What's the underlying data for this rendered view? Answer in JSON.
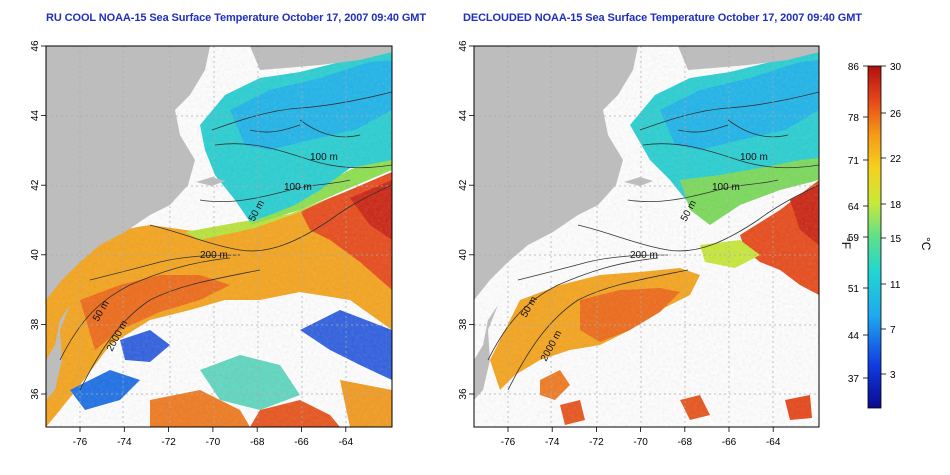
{
  "panels": [
    {
      "title": "RU COOL NOAA-15 Sea Surface Temperature October 17, 2007 09:40 GMT",
      "contours": [
        {
          "label": "100 m"
        },
        {
          "label": "100 m"
        },
        {
          "label": "50 m"
        },
        {
          "label": "200 m"
        },
        {
          "label": "50 m"
        },
        {
          "label": "2000 m"
        }
      ]
    },
    {
      "title": "DECLOUDED NOAA-15 Sea Surface Temperature October 17, 2007 09:40 GMT",
      "contours": [
        {
          "label": "100 m"
        },
        {
          "label": "100 m"
        },
        {
          "label": "50 m"
        },
        {
          "label": "200 m"
        },
        {
          "label": "50 m"
        },
        {
          "label": "2000 m"
        }
      ]
    }
  ],
  "axes": {
    "x_ticks": [
      "-76",
      "-74",
      "-72",
      "-70",
      "-68",
      "-66",
      "-64"
    ],
    "y_ticks": [
      "36",
      "38",
      "40",
      "42",
      "44",
      "46"
    ]
  },
  "colorbar": {
    "f_ticks": [
      "86",
      "78",
      "71",
      "64",
      "59",
      "51",
      "44",
      "37"
    ],
    "c_ticks": [
      "30",
      "26",
      "22",
      "18",
      "15",
      "11",
      "7",
      "3"
    ],
    "f_unit": "°F",
    "c_unit": "°C"
  },
  "colors": {
    "land": "#bdbdbd",
    "cloud": "#ffffff",
    "title": "#1f2fbf",
    "grid": "#aaaaaa"
  }
}
